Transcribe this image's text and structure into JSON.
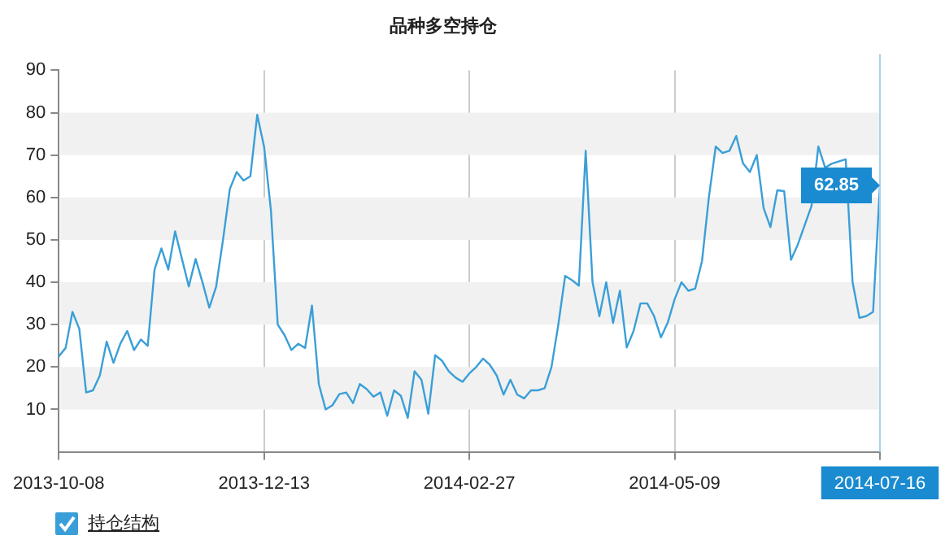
{
  "chart_data": {
    "type": "line",
    "title": "品种多空持仓",
    "categories": [
      "2013-10-08",
      null,
      null,
      null,
      null,
      null,
      null,
      null,
      null,
      null,
      null,
      null,
      null,
      null,
      null,
      null,
      null,
      null,
      null,
      null,
      null,
      null,
      null,
      null,
      null,
      null,
      null,
      null,
      null,
      null,
      "2013-12-13",
      null,
      null,
      null,
      null,
      null,
      null,
      null,
      null,
      null,
      null,
      null,
      null,
      null,
      null,
      null,
      null,
      null,
      null,
      null,
      null,
      null,
      null,
      null,
      null,
      null,
      null,
      null,
      null,
      null,
      "2014-02-27",
      null,
      null,
      null,
      null,
      null,
      null,
      null,
      null,
      null,
      null,
      null,
      null,
      null,
      null,
      null,
      null,
      null,
      null,
      null,
      null,
      null,
      null,
      null,
      null,
      null,
      null,
      null,
      null,
      null,
      "2014-05-09",
      null,
      null,
      null,
      null,
      null,
      null,
      null,
      null,
      null,
      null,
      null,
      null,
      null,
      null,
      null,
      null,
      null,
      null,
      null,
      null,
      null,
      null,
      null,
      null,
      null,
      null,
      null,
      null,
      null,
      "2014-07-16"
    ],
    "series": [
      {
        "name": "持仓结构",
        "color": "#3a9fd8",
        "values": [
          22.5,
          24.5,
          33,
          29,
          14,
          14.5,
          18,
          26,
          21,
          25.5,
          28.5,
          24,
          26.5,
          25,
          43,
          48,
          43,
          52,
          45.5,
          39,
          45.5,
          40,
          34,
          39,
          50,
          62,
          66,
          64,
          65,
          79.5,
          72,
          57,
          30,
          27.5,
          24,
          25.5,
          24.5,
          34.5,
          16,
          10,
          11,
          13.6,
          14,
          11.5,
          16,
          14.8,
          13,
          14,
          8.5,
          14.5,
          13.2,
          8,
          19,
          17,
          9,
          22.8,
          21.5,
          19,
          17.5,
          16.5,
          18.5,
          20,
          22,
          20.5,
          18,
          13.5,
          17,
          13.5,
          12.6,
          14.5,
          14.5,
          15,
          20,
          30,
          41.5,
          40.5,
          39.2,
          71,
          40,
          32,
          40,
          30.4,
          38,
          24.6,
          28.5,
          35,
          35,
          32,
          27,
          30.5,
          36,
          40,
          38,
          38.5,
          45,
          60,
          72,
          70.5,
          71,
          74.5,
          68,
          66,
          70,
          57.5,
          53,
          61.7,
          61.5,
          45.3,
          48.9,
          null,
          58,
          72,
          67,
          68,
          null,
          69,
          40,
          31.6,
          32,
          33,
          62.85
        ]
      }
    ],
    "ylim": [
      0,
      90
    ],
    "yticks": [
      10,
      20,
      30,
      40,
      50,
      60,
      70,
      80,
      90
    ],
    "grid": true,
    "legend": "bottom left",
    "marker": "none",
    "line_style": "solid",
    "annotations": [
      {
        "text": "62.85",
        "x": "2014-07-16",
        "y": 62.85
      }
    ]
  }
}
